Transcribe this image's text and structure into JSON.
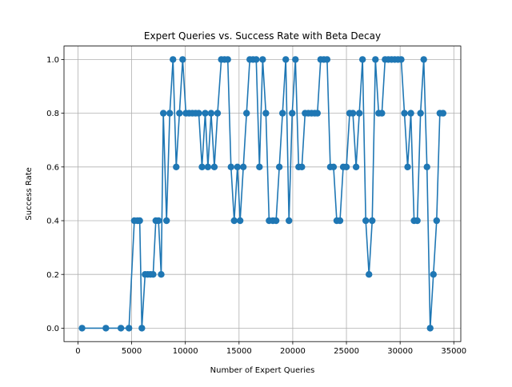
{
  "chart_data": {
    "type": "line",
    "title": "Expert Queries vs. Success Rate with Beta Decay",
    "xlabel": "Number of Expert Queries",
    "ylabel": "Success Rate",
    "xlim": [
      -1300,
      35650
    ],
    "ylim": [
      -0.05,
      1.05
    ],
    "x_ticks": [
      0,
      5000,
      10000,
      15000,
      20000,
      25000,
      30000,
      35000
    ],
    "x_tick_labels": [
      "0",
      "5000",
      "10000",
      "15000",
      "20000",
      "25000",
      "30000",
      "35000"
    ],
    "y_ticks": [
      0.0,
      0.2,
      0.4,
      0.6,
      0.8,
      1.0
    ],
    "y_tick_labels": [
      "0.0",
      "0.2",
      "0.4",
      "0.6",
      "0.8",
      "1.0"
    ],
    "grid": true,
    "series": [
      {
        "color": "#1f77b4",
        "marker": "circle",
        "points": [
          [
            380,
            0.0
          ],
          [
            2600,
            0.0
          ],
          [
            4000,
            0.0
          ],
          [
            4750,
            0.0
          ],
          [
            5250,
            0.4
          ],
          [
            5550,
            0.4
          ],
          [
            5750,
            0.4
          ],
          [
            5950,
            0.0
          ],
          [
            6250,
            0.2
          ],
          [
            6500,
            0.2
          ],
          [
            6750,
            0.2
          ],
          [
            7000,
            0.2
          ],
          [
            7250,
            0.4
          ],
          [
            7500,
            0.4
          ],
          [
            7750,
            0.2
          ],
          [
            7950,
            0.8
          ],
          [
            8250,
            0.4
          ],
          [
            8550,
            0.8
          ],
          [
            8850,
            1.0
          ],
          [
            9150,
            0.6
          ],
          [
            9450,
            0.8
          ],
          [
            9750,
            1.0
          ],
          [
            10050,
            0.8
          ],
          [
            10350,
            0.8
          ],
          [
            10650,
            0.8
          ],
          [
            10950,
            0.8
          ],
          [
            11250,
            0.8
          ],
          [
            11550,
            0.6
          ],
          [
            11850,
            0.8
          ],
          [
            12100,
            0.6
          ],
          [
            12400,
            0.8
          ],
          [
            12700,
            0.6
          ],
          [
            13000,
            0.8
          ],
          [
            13350,
            1.0
          ],
          [
            13650,
            1.0
          ],
          [
            13950,
            1.0
          ],
          [
            14250,
            0.6
          ],
          [
            14550,
            0.4
          ],
          [
            14850,
            0.6
          ],
          [
            15100,
            0.4
          ],
          [
            15400,
            0.6
          ],
          [
            15700,
            0.8
          ],
          [
            16000,
            1.0
          ],
          [
            16300,
            1.0
          ],
          [
            16600,
            1.0
          ],
          [
            16900,
            0.6
          ],
          [
            17200,
            1.0
          ],
          [
            17500,
            0.8
          ],
          [
            17800,
            0.4
          ],
          [
            18150,
            0.4
          ],
          [
            18450,
            0.4
          ],
          [
            18750,
            0.6
          ],
          [
            19050,
            0.8
          ],
          [
            19350,
            1.0
          ],
          [
            19650,
            0.4
          ],
          [
            19950,
            0.8
          ],
          [
            20250,
            1.0
          ],
          [
            20550,
            0.6
          ],
          [
            20850,
            0.6
          ],
          [
            21150,
            0.8
          ],
          [
            21450,
            0.8
          ],
          [
            21750,
            0.8
          ],
          [
            22050,
            0.8
          ],
          [
            22300,
            0.8
          ],
          [
            22600,
            1.0
          ],
          [
            22900,
            1.0
          ],
          [
            23200,
            1.0
          ],
          [
            23500,
            0.6
          ],
          [
            23800,
            0.6
          ],
          [
            24100,
            0.4
          ],
          [
            24400,
            0.4
          ],
          [
            24700,
            0.6
          ],
          [
            25000,
            0.6
          ],
          [
            25300,
            0.8
          ],
          [
            25600,
            0.8
          ],
          [
            25900,
            0.6
          ],
          [
            26200,
            0.8
          ],
          [
            26500,
            1.0
          ],
          [
            26800,
            0.4
          ],
          [
            27100,
            0.2
          ],
          [
            27400,
            0.4
          ],
          [
            27700,
            1.0
          ],
          [
            28000,
            0.8
          ],
          [
            28300,
            0.8
          ],
          [
            28600,
            1.0
          ],
          [
            28900,
            1.0
          ],
          [
            29200,
            1.0
          ],
          [
            29500,
            1.0
          ],
          [
            29800,
            1.0
          ],
          [
            30100,
            1.0
          ],
          [
            30400,
            0.8
          ],
          [
            30700,
            0.6
          ],
          [
            31000,
            0.8
          ],
          [
            31300,
            0.4
          ],
          [
            31600,
            0.4
          ],
          [
            31900,
            0.8
          ],
          [
            32200,
            1.0
          ],
          [
            32500,
            0.6
          ],
          [
            32800,
            0.0
          ],
          [
            33100,
            0.2
          ],
          [
            33400,
            0.4
          ],
          [
            33700,
            0.8
          ],
          [
            34000,
            0.8
          ]
        ]
      }
    ]
  },
  "colors": {
    "series": "#1f77b4",
    "grid": "#b0b0b0",
    "axes": "#000000",
    "background": "#ffffff"
  }
}
